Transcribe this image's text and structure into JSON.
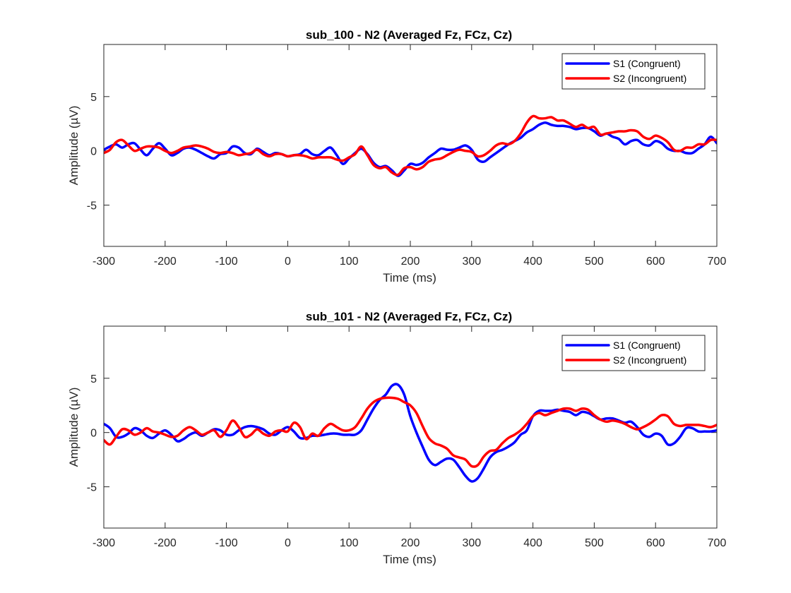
{
  "chart_data": [
    {
      "type": "line",
      "title": "sub_100 - N2 (Averaged Fz, FCz, Cz)",
      "xlabel": "Time (ms)",
      "ylabel": "Amplitude (µV)",
      "xlim": [
        -300,
        700
      ],
      "ylim": [
        -8.8,
        9.8
      ],
      "xticks": [
        "-300",
        "-200",
        "-100",
        "0",
        "100",
        "200",
        "300",
        "400",
        "500",
        "600",
        "700"
      ],
      "yticks": [
        "-5",
        "0",
        "5"
      ],
      "grid": false,
      "legend_position": "top-right",
      "series": [
        {
          "name": "S1 (Congruent)",
          "color": "#0000ff",
          "x": [
            -300,
            -290,
            -280,
            -270,
            -260,
            -250,
            -240,
            -230,
            -220,
            -210,
            -200,
            -190,
            -180,
            -170,
            -160,
            -150,
            -140,
            -130,
            -120,
            -110,
            -100,
            -90,
            -80,
            -70,
            -60,
            -50,
            -40,
            -30,
            -20,
            -10,
            0,
            10,
            20,
            30,
            40,
            50,
            60,
            70,
            80,
            90,
            100,
            110,
            120,
            130,
            140,
            150,
            160,
            170,
            180,
            190,
            200,
            210,
            220,
            230,
            240,
            250,
            260,
            270,
            280,
            290,
            300,
            310,
            320,
            330,
            340,
            350,
            360,
            370,
            380,
            390,
            400,
            410,
            420,
            430,
            440,
            450,
            460,
            470,
            480,
            490,
            500,
            510,
            520,
            530,
            540,
            550,
            560,
            570,
            580,
            590,
            600,
            610,
            620,
            630,
            640,
            650,
            660,
            670,
            680,
            690,
            700
          ],
          "y": [
            0.1,
            0.4,
            0.6,
            0.3,
            0.6,
            0.7,
            0.1,
            -0.4,
            0.2,
            0.7,
            0.2,
            -0.4,
            -0.2,
            0.2,
            0.3,
            0.1,
            -0.2,
            -0.5,
            -0.7,
            -0.3,
            -0.2,
            0.4,
            0.3,
            -0.2,
            -0.3,
            0.2,
            -0.1,
            -0.4,
            -0.2,
            -0.3,
            -0.5,
            -0.4,
            -0.3,
            0.1,
            -0.3,
            -0.4,
            0.0,
            0.3,
            -0.4,
            -1.2,
            -0.7,
            -0.2,
            0.2,
            -0.3,
            -1.1,
            -1.5,
            -1.4,
            -1.8,
            -2.3,
            -1.8,
            -1.2,
            -1.3,
            -1.1,
            -0.6,
            -0.2,
            0.2,
            0.1,
            0.1,
            0.3,
            0.5,
            0.1,
            -0.8,
            -1.0,
            -0.6,
            -0.2,
            0.2,
            0.6,
            0.9,
            1.2,
            1.7,
            2.0,
            2.4,
            2.6,
            2.4,
            2.3,
            2.3,
            2.2,
            2.0,
            2.1,
            2.1,
            1.8,
            1.4,
            1.6,
            1.3,
            1.1,
            0.6,
            0.9,
            1.0,
            0.6,
            0.5,
            0.9,
            0.7,
            0.2,
            0.0,
            0.0,
            -0.2,
            -0.2,
            0.2,
            0.6,
            1.3,
            0.7
          ]
        },
        {
          "name": "S2 (Incongruent)",
          "color": "#ff0000",
          "x": [
            -300,
            -290,
            -280,
            -270,
            -260,
            -250,
            -240,
            -230,
            -220,
            -210,
            -200,
            -190,
            -180,
            -170,
            -160,
            -150,
            -140,
            -130,
            -120,
            -110,
            -100,
            -90,
            -80,
            -70,
            -60,
            -50,
            -40,
            -30,
            -20,
            -10,
            0,
            10,
            20,
            30,
            40,
            50,
            60,
            70,
            80,
            90,
            100,
            110,
            120,
            130,
            140,
            150,
            160,
            170,
            180,
            190,
            200,
            210,
            220,
            230,
            240,
            250,
            260,
            270,
            280,
            290,
            300,
            310,
            320,
            330,
            340,
            350,
            360,
            370,
            380,
            390,
            400,
            410,
            420,
            430,
            440,
            450,
            460,
            470,
            480,
            490,
            500,
            510,
            520,
            530,
            540,
            550,
            560,
            570,
            580,
            590,
            600,
            610,
            620,
            630,
            640,
            650,
            660,
            670,
            680,
            690,
            700
          ],
          "y": [
            -0.2,
            0.1,
            0.8,
            1.0,
            0.5,
            0.0,
            0.2,
            0.4,
            0.4,
            0.3,
            0.0,
            -0.2,
            0.0,
            0.3,
            0.4,
            0.5,
            0.4,
            0.2,
            -0.1,
            -0.2,
            -0.1,
            -0.2,
            -0.4,
            -0.3,
            -0.2,
            0.1,
            -0.3,
            -0.5,
            -0.3,
            -0.3,
            -0.5,
            -0.4,
            -0.4,
            -0.5,
            -0.7,
            -0.6,
            -0.6,
            -0.6,
            -0.8,
            -0.9,
            -0.6,
            -0.3,
            0.4,
            -0.4,
            -1.3,
            -1.6,
            -1.5,
            -2.0,
            -2.2,
            -1.6,
            -1.5,
            -1.7,
            -1.5,
            -1.0,
            -0.8,
            -0.7,
            -0.4,
            -0.1,
            0.1,
            0.0,
            -0.1,
            -0.5,
            -0.4,
            0.0,
            0.5,
            0.7,
            0.6,
            0.9,
            1.6,
            2.6,
            3.2,
            3.0,
            3.0,
            3.1,
            2.8,
            2.8,
            2.5,
            2.2,
            2.4,
            2.1,
            2.2,
            1.5,
            1.6,
            1.7,
            1.8,
            1.8,
            1.9,
            1.8,
            1.3,
            1.1,
            1.4,
            1.2,
            0.8,
            0.1,
            0.0,
            0.3,
            0.3,
            0.6,
            0.6,
            1.0,
            1.0
          ]
        }
      ]
    },
    {
      "type": "line",
      "title": "sub_101 - N2 (Averaged Fz, FCz, Cz)",
      "xlabel": "Time (ms)",
      "ylabel": "Amplitude (µV)",
      "xlim": [
        -300,
        700
      ],
      "ylim": [
        -8.8,
        9.8
      ],
      "xticks": [
        "-300",
        "-200",
        "-100",
        "0",
        "100",
        "200",
        "300",
        "400",
        "500",
        "600",
        "700"
      ],
      "yticks": [
        "-5",
        "0",
        "5"
      ],
      "grid": false,
      "legend_position": "top-right",
      "series": [
        {
          "name": "S1 (Congruent)",
          "color": "#0000ff",
          "x": [
            -300,
            -290,
            -280,
            -270,
            -260,
            -250,
            -240,
            -230,
            -220,
            -210,
            -200,
            -190,
            -180,
            -170,
            -160,
            -150,
            -140,
            -130,
            -120,
            -110,
            -100,
            -90,
            -80,
            -70,
            -60,
            -50,
            -40,
            -30,
            -20,
            -10,
            0,
            10,
            20,
            30,
            40,
            50,
            60,
            70,
            80,
            90,
            100,
            110,
            120,
            130,
            140,
            150,
            160,
            170,
            180,
            190,
            200,
            210,
            220,
            230,
            240,
            250,
            260,
            270,
            280,
            290,
            300,
            310,
            320,
            330,
            340,
            350,
            360,
            370,
            380,
            390,
            400,
            410,
            420,
            430,
            440,
            450,
            460,
            470,
            480,
            490,
            500,
            510,
            520,
            530,
            540,
            550,
            560,
            570,
            580,
            590,
            600,
            610,
            620,
            630,
            640,
            650,
            660,
            670,
            680,
            690,
            700
          ],
          "y": [
            0.8,
            0.4,
            -0.4,
            -0.4,
            -0.1,
            0.4,
            0.2,
            -0.3,
            -0.5,
            -0.1,
            0.2,
            -0.2,
            -0.8,
            -0.6,
            -0.2,
            0.0,
            -0.3,
            0.0,
            0.3,
            0.2,
            -0.2,
            -0.2,
            0.2,
            0.5,
            0.6,
            0.5,
            0.3,
            -0.1,
            -0.2,
            0.2,
            0.5,
            0.1,
            -0.5,
            -0.5,
            -0.3,
            -0.3,
            -0.2,
            -0.1,
            -0.1,
            -0.2,
            -0.2,
            -0.2,
            0.2,
            1.2,
            2.2,
            3.0,
            3.5,
            4.3,
            4.4,
            3.5,
            1.5,
            0.0,
            -1.3,
            -2.5,
            -3.0,
            -2.7,
            -2.4,
            -2.5,
            -3.2,
            -4.0,
            -4.5,
            -4.2,
            -3.3,
            -2.3,
            -1.8,
            -1.6,
            -1.3,
            -0.9,
            -0.2,
            0.2,
            1.5,
            2.0,
            2.0,
            2.0,
            2.1,
            2.0,
            1.9,
            1.6,
            1.9,
            1.8,
            1.5,
            1.2,
            1.3,
            1.3,
            1.1,
            0.9,
            1.0,
            0.5,
            -0.2,
            -0.4,
            -0.1,
            -0.3,
            -1.1,
            -1.0,
            -0.4,
            0.4,
            0.4,
            0.1,
            0.1,
            0.1,
            0.2
          ]
        },
        {
          "name": "S2 (Incongruent)",
          "color": "#ff0000",
          "x": [
            -300,
            -290,
            -280,
            -270,
            -260,
            -250,
            -240,
            -230,
            -220,
            -210,
            -200,
            -190,
            -180,
            -170,
            -160,
            -150,
            -140,
            -130,
            -120,
            -110,
            -100,
            -90,
            -80,
            -70,
            -60,
            -50,
            -40,
            -30,
            -20,
            -10,
            0,
            10,
            20,
            30,
            40,
            50,
            60,
            70,
            80,
            90,
            100,
            110,
            120,
            130,
            140,
            150,
            160,
            170,
            180,
            190,
            200,
            210,
            220,
            230,
            240,
            250,
            260,
            270,
            280,
            290,
            300,
            310,
            320,
            330,
            340,
            350,
            360,
            370,
            380,
            390,
            400,
            410,
            420,
            430,
            440,
            450,
            460,
            470,
            480,
            490,
            500,
            510,
            520,
            530,
            540,
            550,
            560,
            570,
            580,
            590,
            600,
            610,
            620,
            630,
            640,
            650,
            660,
            670,
            680,
            690,
            700
          ],
          "y": [
            -0.7,
            -1.1,
            -0.4,
            0.3,
            0.2,
            -0.2,
            0.0,
            0.4,
            0.1,
            0.0,
            -0.2,
            -0.4,
            -0.3,
            0.2,
            0.5,
            0.2,
            -0.2,
            0.0,
            0.2,
            -0.4,
            0.2,
            1.1,
            0.5,
            -0.4,
            -0.2,
            0.3,
            -0.1,
            -0.3,
            0.1,
            0.2,
            0.1,
            0.9,
            0.5,
            -0.6,
            -0.1,
            -0.3,
            0.4,
            0.8,
            0.5,
            0.2,
            0.2,
            0.5,
            1.3,
            2.2,
            2.8,
            3.1,
            3.2,
            3.2,
            3.1,
            2.8,
            2.5,
            1.8,
            0.6,
            -0.5,
            -1.0,
            -1.2,
            -1.5,
            -2.1,
            -2.3,
            -2.5,
            -3.1,
            -3.0,
            -2.2,
            -1.7,
            -1.6,
            -1.0,
            -0.5,
            -0.2,
            0.2,
            0.8,
            1.5,
            1.8,
            1.6,
            1.8,
            2.0,
            2.2,
            2.2,
            2.0,
            2.2,
            2.1,
            1.6,
            1.2,
            1.0,
            1.1,
            1.0,
            0.8,
            0.5,
            0.3,
            0.5,
            0.8,
            1.2,
            1.6,
            1.5,
            0.8,
            0.6,
            0.7,
            0.7,
            0.7,
            0.6,
            0.5,
            0.7
          ]
        }
      ]
    }
  ]
}
